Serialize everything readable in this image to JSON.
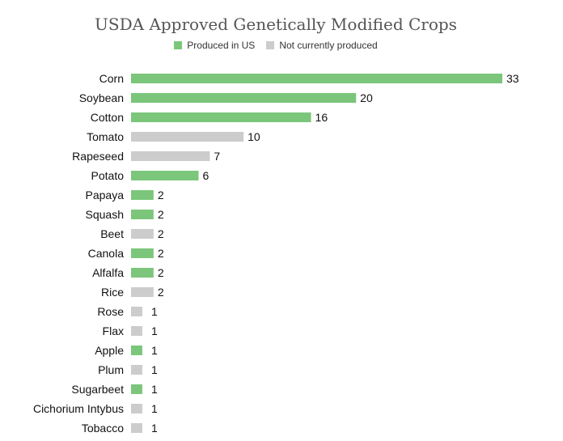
{
  "colors": {
    "produced": "#7bc67b",
    "not_produced": "#cccccc",
    "label_text": "#111111"
  },
  "chart_data": {
    "type": "bar",
    "orientation": "horizontal",
    "title": "USDA Approved Genetically Modified Crops",
    "legend": {
      "position": "top",
      "entries": [
        {
          "key": "produced",
          "label": "Produced in US"
        },
        {
          "key": "not_produced",
          "label": "Not currently produced"
        }
      ]
    },
    "xlim": [
      0,
      33
    ],
    "grid": false,
    "categories": [
      "Corn",
      "Soybean",
      "Cotton",
      "Tomato",
      "Rapeseed",
      "Potato",
      "Papaya",
      "Squash",
      "Beet",
      "Canola",
      "Alfalfa",
      "Rice",
      "Rose",
      "Flax",
      "Apple",
      "Plum",
      "Sugarbeet",
      "Cichorium Intybus",
      "Tobacco"
    ],
    "values": [
      33,
      20,
      16,
      10,
      7,
      6,
      2,
      2,
      2,
      2,
      2,
      2,
      1,
      1,
      1,
      1,
      1,
      1,
      1
    ],
    "status": [
      "produced",
      "produced",
      "produced",
      "not_produced",
      "not_produced",
      "produced",
      "produced",
      "produced",
      "not_produced",
      "produced",
      "produced",
      "not_produced",
      "not_produced",
      "not_produced",
      "produced",
      "not_produced",
      "produced",
      "not_produced",
      "not_produced"
    ]
  }
}
